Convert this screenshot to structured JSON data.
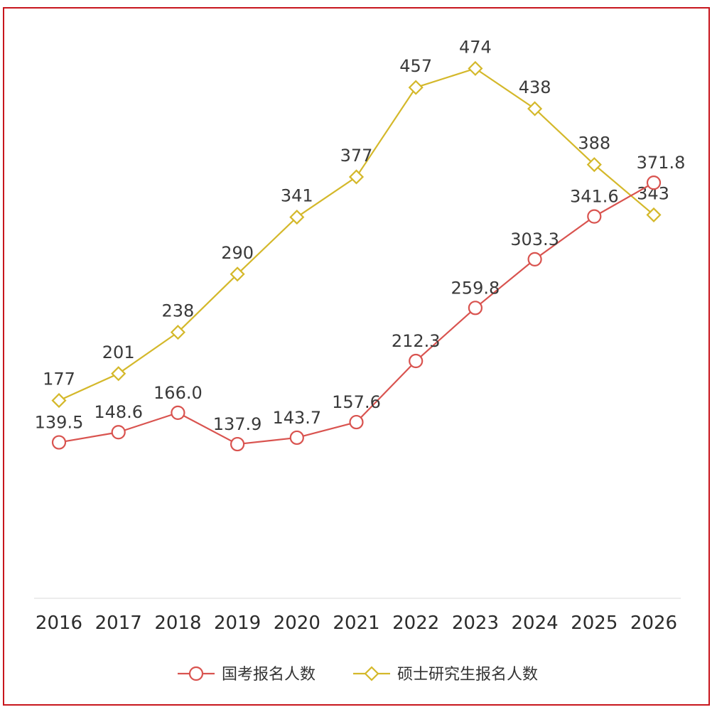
{
  "chart_data": {
    "type": "line",
    "title": "",
    "xlabel": "",
    "ylabel": "",
    "categories": [
      "2016",
      "2017",
      "2018",
      "2019",
      "2020",
      "2021",
      "2022",
      "2023",
      "2024",
      "2025",
      "2026"
    ],
    "ylim": [
      0,
      520
    ],
    "grid": false,
    "legend_position": "bottom",
    "series": [
      {
        "name": "国考报名人数",
        "color": "#d9534f",
        "marker": "circle",
        "values": [
          139.5,
          148.6,
          166.0,
          137.9,
          143.7,
          157.6,
          212.3,
          259.8,
          303.3,
          341.6,
          371.8
        ],
        "labels": [
          "139.5",
          "148.6",
          "166.0",
          "137.9",
          "143.7",
          "157.6",
          "212.3",
          "259.8",
          "303.3",
          "341.6",
          "371.8"
        ]
      },
      {
        "name": "硕士研究生报名人数",
        "color": "#d4b82a",
        "marker": "diamond",
        "values": [
          177,
          201,
          238,
          290,
          341,
          377,
          457,
          474,
          438,
          388,
          343
        ],
        "labels": [
          "177",
          "201",
          "238",
          "290",
          "341",
          "377",
          "457",
          "474",
          "438",
          "388",
          "343"
        ]
      }
    ]
  }
}
